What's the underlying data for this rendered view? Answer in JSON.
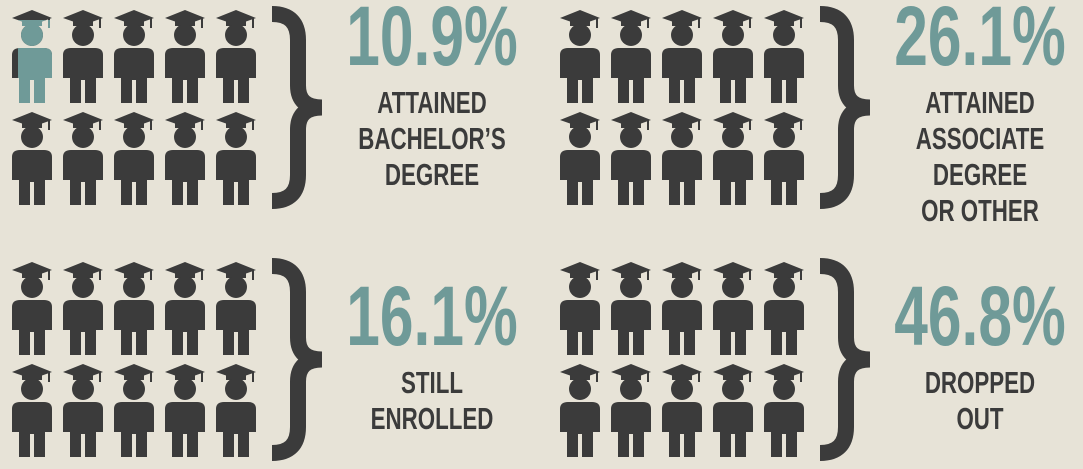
{
  "chart_data": {
    "type": "pictogram",
    "categories": [
      [
        "ATTAINED",
        "BACHELOR’S",
        "DEGREE"
      ],
      [
        "ATTAINED",
        "ASSOCIATE",
        "DEGREE",
        "OR OTHER"
      ],
      [
        "STILL",
        "ENROLLED"
      ],
      [
        "DROPPED",
        "OUT"
      ]
    ],
    "values": [
      10.9,
      26.1,
      16.1,
      46.8
    ],
    "value_labels": [
      "10.9%",
      "26.1%",
      "16.1%",
      "46.8%"
    ],
    "color": "#6f9a98",
    "base_color": "#3b3b3b"
  }
}
